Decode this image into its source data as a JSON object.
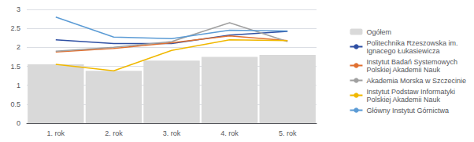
{
  "chart_data": {
    "type": "bar",
    "categories": [
      "1. rok",
      "2. rok",
      "3. rok",
      "4. rok",
      "5. rok"
    ],
    "series": [
      {
        "name": "Ogółem",
        "type": "bar",
        "color": "#d9d9d9",
        "values": [
          1.55,
          1.38,
          1.65,
          1.75,
          1.8
        ]
      },
      {
        "name": "Politechnika Rzeszowska im.\nIgnacego Łukasiewicza",
        "type": "line",
        "color": "#2e4fa3",
        "values": [
          2.2,
          2.1,
          2.1,
          2.32,
          2.42
        ]
      },
      {
        "name": "Instytut Badań Systemowych\nPolskiej Akademii Nauk",
        "type": "line",
        "color": "#e07030",
        "values": [
          1.88,
          1.97,
          2.12,
          2.3,
          2.18
        ]
      },
      {
        "name": "Akademia Morska w Szczecinie",
        "type": "line",
        "color": "#a0a0a0",
        "values": [
          1.9,
          2.0,
          2.15,
          2.65,
          2.15
        ]
      },
      {
        "name": "Instytut Podstaw Informatyki\nPolskiej Akademii Nauk",
        "type": "line",
        "color": "#f0b800",
        "values": [
          1.55,
          1.38,
          1.92,
          2.2,
          2.18
        ]
      },
      {
        "name": "Główny Instytut Górnictwa",
        "type": "line",
        "color": "#5b9bd5",
        "values": [
          2.8,
          2.27,
          2.23,
          2.45,
          2.43
        ]
      }
    ],
    "ylim": [
      0,
      3
    ],
    "yticks": [
      0,
      0.5,
      1,
      1.5,
      2,
      2.5,
      3
    ],
    "grid": true,
    "legend": "right"
  }
}
